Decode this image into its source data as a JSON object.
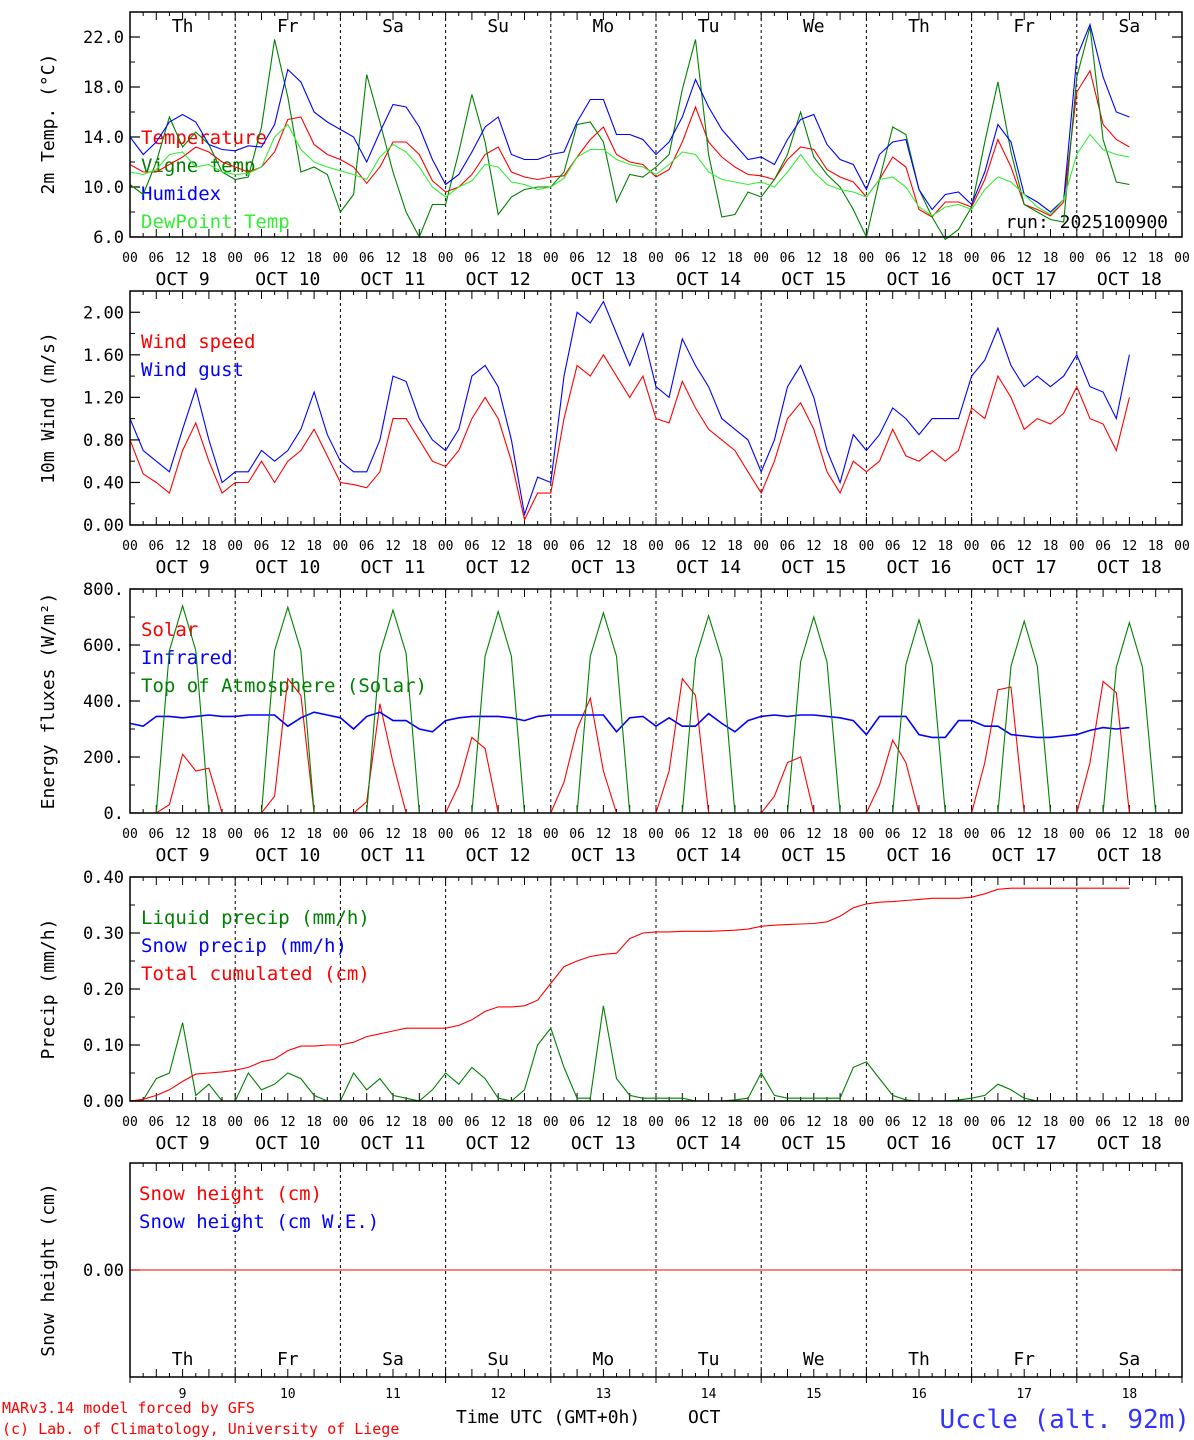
{
  "colors": {
    "red": "#ff0000",
    "green": "#008000",
    "blue": "#0000ff",
    "lightgreen": "#33ee33",
    "weekend": "#ff0000",
    "station": "#3333ff"
  },
  "days": {
    "weekday_labels": [
      "Th",
      "Fr",
      "Sa",
      "Su",
      "Mo",
      "Tu",
      "We",
      "Th",
      "Fr",
      "Sa"
    ],
    "weekend_flags": [
      false,
      false,
      true,
      true,
      false,
      false,
      false,
      false,
      false,
      true
    ],
    "date_labels": [
      "OCT  9",
      "OCT 10",
      "OCT 11",
      "OCT 12",
      "OCT 13",
      "OCT 14",
      "OCT 15",
      "OCT 16",
      "OCT 17",
      "OCT 18"
    ],
    "day_numbers": [
      "9",
      "10",
      "11",
      "12",
      "13",
      "14",
      "15",
      "16",
      "17",
      "18"
    ],
    "hour_ticks": [
      "00",
      "06",
      "12",
      "18"
    ],
    "final_tick": "00"
  },
  "footer": {
    "model_line": "MARv3.14 model forced by GFS",
    "lab_line": "(c) Lab. of Climatology, University of Liege",
    "time_axis": "Time UTC (GMT+0h)",
    "month": "OCT",
    "station": "Uccle (alt. 92m)"
  },
  "chart_data": [
    {
      "type": "line",
      "id": "temp",
      "ylabel": "2m Temp. (°C)",
      "ylim": [
        6,
        24
      ],
      "yticks": [
        6,
        10,
        14,
        18,
        22
      ],
      "ytick_labels": [
        "6.0",
        "10.0",
        "14.0",
        "18.0",
        "22.0"
      ],
      "annotation": "run: 2025100900",
      "x_step_hours": 3,
      "series": [
        {
          "name": "Temperature",
          "color": "red",
          "values": [
            11.8,
            11.2,
            11.2,
            11.8,
            12.4,
            13.2,
            12.8,
            12.0,
            11.6,
            11.2,
            11.6,
            12.8,
            15.4,
            15.6,
            13.4,
            12.6,
            12.2,
            11.6,
            10.3,
            11.6,
            13.6,
            13.6,
            12.6,
            10.5,
            9.6,
            10.0,
            11.0,
            12.6,
            13.2,
            11.2,
            10.8,
            10.6,
            10.8,
            10.9,
            12.4,
            13.8,
            14.8,
            12.6,
            12.0,
            11.8,
            10.8,
            11.4,
            13.6,
            16.4,
            13.6,
            12.4,
            11.6,
            11.0,
            10.9,
            10.6,
            12.2,
            13.2,
            13.0,
            11.4,
            10.8,
            10.4,
            9.2,
            10.6,
            12.4,
            11.6,
            8.2,
            7.6,
            8.8,
            8.8,
            8.4,
            10.6,
            13.8,
            11.6,
            8.6,
            8.2,
            7.7,
            8.8,
            17.6,
            19.3,
            15.0,
            13.8,
            13.2
          ]
        },
        {
          "name": "Vigne temp",
          "color": "green",
          "values": [
            10.2,
            9.4,
            12.0,
            15.6,
            13.2,
            14.4,
            13.4,
            11.2,
            10.6,
            10.8,
            14.8,
            21.8,
            17.2,
            11.2,
            11.6,
            11.0,
            8.0,
            9.4,
            19.0,
            15.2,
            11.2,
            8.0,
            6.0,
            8.6,
            8.6,
            12.8,
            17.4,
            13.6,
            7.8,
            9.2,
            9.8,
            10.0,
            10.0,
            11.2,
            15.0,
            15.2,
            13.6,
            8.8,
            11.0,
            10.8,
            11.6,
            12.6,
            17.8,
            21.8,
            12.6,
            7.6,
            7.8,
            9.6,
            9.2,
            10.6,
            12.6,
            16.0,
            12.4,
            11.0,
            10.0,
            8.2,
            6.0,
            10.6,
            14.8,
            14.2,
            9.8,
            7.6,
            5.8,
            6.6,
            8.4,
            13.6,
            18.4,
            12.8,
            8.6,
            8.0,
            7.4,
            7.2,
            18.8,
            22.8,
            13.8,
            10.4,
            10.2
          ]
        },
        {
          "name": "Humidex",
          "color": "blue",
          "values": [
            14.0,
            12.6,
            13.6,
            15.2,
            15.8,
            15.2,
            13.4,
            13.0,
            12.9,
            13.3,
            13.2,
            15.0,
            19.4,
            18.4,
            16.0,
            15.2,
            14.6,
            14.0,
            12.0,
            14.4,
            16.6,
            16.4,
            14.8,
            12.2,
            10.2,
            11.0,
            12.8,
            14.8,
            15.6,
            12.6,
            12.2,
            12.2,
            12.6,
            12.8,
            15.2,
            17.0,
            17.0,
            14.2,
            14.2,
            13.8,
            12.6,
            13.6,
            15.6,
            18.6,
            16.4,
            14.6,
            13.4,
            12.2,
            12.4,
            11.8,
            13.8,
            15.4,
            15.8,
            13.4,
            12.2,
            11.8,
            9.8,
            12.6,
            13.6,
            13.8,
            9.8,
            8.2,
            9.4,
            9.6,
            8.6,
            11.2,
            15.0,
            13.6,
            9.4,
            8.8,
            8.0,
            9.0,
            20.4,
            23.0,
            18.8,
            16.0,
            15.6
          ]
        },
        {
          "name": "DewPoint Temp",
          "color": "lightgreen",
          "values": [
            11.2,
            11.0,
            11.4,
            12.6,
            12.8,
            11.6,
            11.8,
            11.2,
            11.0,
            11.1,
            11.6,
            14.0,
            15.0,
            13.0,
            12.0,
            11.6,
            11.3,
            11.0,
            10.6,
            12.4,
            13.4,
            12.8,
            11.6,
            10.0,
            9.2,
            10.0,
            10.5,
            11.8,
            11.6,
            10.4,
            10.2,
            9.8,
            10.0,
            10.7,
            12.4,
            13.0,
            13.0,
            12.2,
            11.8,
            11.6,
            11.0,
            11.8,
            12.8,
            12.6,
            11.2,
            10.6,
            10.4,
            10.2,
            10.4,
            10.0,
            11.2,
            12.6,
            11.2,
            10.2,
            9.8,
            9.6,
            9.2,
            10.6,
            10.8,
            10.0,
            8.4,
            7.7,
            8.4,
            8.6,
            8.2,
            9.8,
            10.8,
            10.4,
            9.4,
            8.4,
            7.8,
            9.0,
            12.6,
            14.2,
            13.0,
            12.6,
            12.4
          ]
        }
      ]
    },
    {
      "type": "line",
      "id": "wind",
      "ylabel": "10m Wind (m/s)",
      "ylim": [
        0,
        2.2
      ],
      "yticks": [
        0,
        0.4,
        0.8,
        1.2,
        1.6,
        2.0
      ],
      "ytick_labels": [
        "0.00",
        "0.40",
        "0.80",
        "1.20",
        "1.60",
        "2.00"
      ],
      "x_step_hours": 3,
      "series": [
        {
          "name": "Wind speed",
          "color": "red",
          "values": [
            0.8,
            0.48,
            0.4,
            0.3,
            0.7,
            0.96,
            0.6,
            0.3,
            0.4,
            0.4,
            0.6,
            0.4,
            0.6,
            0.7,
            0.9,
            0.65,
            0.4,
            0.38,
            0.35,
            0.5,
            1.0,
            1.0,
            0.8,
            0.6,
            0.55,
            0.7,
            1.0,
            1.2,
            1.0,
            0.6,
            0.05,
            0.3,
            0.3,
            1.0,
            1.5,
            1.4,
            1.6,
            1.4,
            1.2,
            1.4,
            1.0,
            0.96,
            1.35,
            1.1,
            0.9,
            0.8,
            0.7,
            0.5,
            0.3,
            0.6,
            1.0,
            1.15,
            0.9,
            0.5,
            0.3,
            0.6,
            0.5,
            0.6,
            0.9,
            0.65,
            0.6,
            0.7,
            0.6,
            0.7,
            1.1,
            1.0,
            1.4,
            1.2,
            0.9,
            1.0,
            0.95,
            1.05,
            1.3,
            1.0,
            0.95,
            0.7,
            1.2
          ]
        },
        {
          "name": "Wind gust",
          "color": "blue",
          "values": [
            1.0,
            0.7,
            0.6,
            0.5,
            0.9,
            1.28,
            0.8,
            0.4,
            0.5,
            0.5,
            0.7,
            0.6,
            0.7,
            0.9,
            1.25,
            0.85,
            0.6,
            0.5,
            0.5,
            0.8,
            1.4,
            1.35,
            1.0,
            0.8,
            0.7,
            0.9,
            1.4,
            1.5,
            1.3,
            0.8,
            0.1,
            0.45,
            0.4,
            1.4,
            2.0,
            1.9,
            2.1,
            1.8,
            1.5,
            1.8,
            1.3,
            1.2,
            1.75,
            1.5,
            1.3,
            1.0,
            0.9,
            0.8,
            0.5,
            0.8,
            1.3,
            1.5,
            1.2,
            0.7,
            0.4,
            0.85,
            0.7,
            0.85,
            1.1,
            1.0,
            0.85,
            1.0,
            1.0,
            1.0,
            1.4,
            1.55,
            1.85,
            1.5,
            1.3,
            1.4,
            1.3,
            1.4,
            1.6,
            1.3,
            1.25,
            1.0,
            1.6
          ]
        }
      ]
    },
    {
      "type": "line",
      "id": "energy",
      "ylabel": "Energy fluxes (W/m²)",
      "ylim": [
        0,
        800
      ],
      "yticks": [
        0,
        200,
        400,
        600,
        800
      ],
      "ytick_labels": [
        "0.",
        "200.",
        "400.",
        "600.",
        "800."
      ],
      "x_step_hours": 3,
      "series": [
        {
          "name": "Solar",
          "color": "red",
          "values": [
            0,
            0,
            0,
            30,
            210,
            150,
            160,
            0,
            0,
            0,
            0,
            60,
            480,
            420,
            0,
            0,
            0,
            0,
            40,
            390,
            180,
            0,
            0,
            0,
            0,
            100,
            270,
            230,
            0,
            0,
            0,
            0,
            0,
            110,
            300,
            410,
            150,
            0,
            0,
            0,
            0,
            150,
            480,
            420,
            0,
            0,
            0,
            0,
            0,
            60,
            180,
            200,
            0,
            0,
            0,
            0,
            0,
            100,
            260,
            180,
            0,
            0,
            0,
            0,
            0,
            180,
            440,
            450,
            0,
            0,
            0,
            0,
            0,
            180,
            470,
            430,
            0
          ]
        },
        {
          "name": "Infrared",
          "color": "blue",
          "values": [
            320,
            310,
            345,
            345,
            340,
            345,
            350,
            345,
            345,
            350,
            350,
            350,
            310,
            340,
            360,
            350,
            340,
            300,
            345,
            360,
            330,
            330,
            300,
            290,
            330,
            340,
            345,
            345,
            345,
            340,
            330,
            345,
            350,
            350,
            350,
            350,
            350,
            290,
            340,
            345,
            310,
            340,
            310,
            310,
            355,
            320,
            290,
            330,
            345,
            350,
            345,
            350,
            350,
            345,
            340,
            330,
            280,
            345,
            345,
            345,
            280,
            270,
            270,
            330,
            330,
            310,
            310,
            280,
            275,
            270,
            270,
            275,
            280,
            295,
            305,
            300,
            305
          ]
        },
        {
          "name": "Top of Atmosphere (Solar)",
          "color": "green",
          "values": [
            0,
            0,
            0,
            580,
            740,
            580,
            0,
            0,
            0,
            0,
            0,
            580,
            735,
            580,
            0,
            0,
            0,
            0,
            0,
            570,
            725,
            570,
            0,
            0,
            0,
            0,
            0,
            560,
            720,
            560,
            0,
            0,
            0,
            0,
            0,
            560,
            715,
            560,
            0,
            0,
            0,
            0,
            0,
            550,
            705,
            550,
            0,
            0,
            0,
            0,
            0,
            540,
            700,
            540,
            0,
            0,
            0,
            0,
            0,
            530,
            690,
            530,
            0,
            0,
            0,
            0,
            0,
            525,
            685,
            525,
            0,
            0,
            0,
            0,
            0,
            520,
            680,
            520,
            0
          ]
        }
      ]
    },
    {
      "type": "line",
      "id": "precip",
      "ylabel": "Precip (mm/h)",
      "ylim": [
        0,
        0.4
      ],
      "yticks": [
        0,
        0.1,
        0.2,
        0.3,
        0.4
      ],
      "ytick_labels": [
        "0.00",
        "0.10",
        "0.20",
        "0.30",
        "0.40"
      ],
      "x_step_hours": 3,
      "series": [
        {
          "name": "Liquid precip (mm/h)",
          "color": "green",
          "values": [
            0,
            0.002,
            0.04,
            0.05,
            0.14,
            0.01,
            0.03,
            0,
            0,
            0.05,
            0.02,
            0.03,
            0.05,
            0.04,
            0.01,
            0,
            0,
            0.05,
            0.02,
            0.04,
            0.01,
            0.005,
            0,
            0.02,
            0.05,
            0.03,
            0.06,
            0.04,
            0.005,
            0,
            0.02,
            0.1,
            0.13,
            0.06,
            0.005,
            0.005,
            0.17,
            0.04,
            0.01,
            0.005,
            0.005,
            0.005,
            0.005,
            0,
            0,
            0,
            0.002,
            0.005,
            0.05,
            0.01,
            0.005,
            0.005,
            0.005,
            0.005,
            0.005,
            0.06,
            0.07,
            0.04,
            0.01,
            0.002,
            0,
            0,
            0,
            0.002,
            0.005,
            0.01,
            0.03,
            0.02,
            0.005,
            0,
            0,
            0,
            0,
            0,
            0,
            0,
            0
          ]
        },
        {
          "name": "Snow precip (mm/h)",
          "color": "blue",
          "values": []
        },
        {
          "name": "Total cumulated (cm)",
          "color": "red",
          "values": [
            0,
            0.003,
            0.01,
            0.02,
            0.035,
            0.048,
            0.05,
            0.052,
            0.055,
            0.06,
            0.07,
            0.075,
            0.09,
            0.098,
            0.098,
            0.1,
            0.1,
            0.105,
            0.115,
            0.12,
            0.125,
            0.13,
            0.13,
            0.13,
            0.13,
            0.135,
            0.145,
            0.16,
            0.168,
            0.168,
            0.17,
            0.18,
            0.21,
            0.24,
            0.25,
            0.258,
            0.262,
            0.264,
            0.29,
            0.3,
            0.302,
            0.302,
            0.303,
            0.303,
            0.303,
            0.304,
            0.305,
            0.307,
            0.312,
            0.314,
            0.315,
            0.316,
            0.317,
            0.32,
            0.33,
            0.345,
            0.352,
            0.355,
            0.356,
            0.358,
            0.36,
            0.362,
            0.362,
            0.362,
            0.364,
            0.37,
            0.378,
            0.38,
            0.38,
            0.38,
            0.38,
            0.38,
            0.38,
            0.38,
            0.38,
            0.38,
            0.38
          ]
        }
      ]
    },
    {
      "type": "line",
      "id": "snow",
      "ylabel": "Snow height (cm)",
      "ylim": [
        -1,
        1
      ],
      "yticks": [
        0
      ],
      "ytick_labels": [
        "0.00"
      ],
      "x_step_hours": 3,
      "series": [
        {
          "name": "Snow height (cm)",
          "color": "red",
          "values": [
            0,
            0
          ]
        },
        {
          "name": "Snow height (cm W.E.)",
          "color": "blue",
          "values": []
        }
      ]
    }
  ]
}
